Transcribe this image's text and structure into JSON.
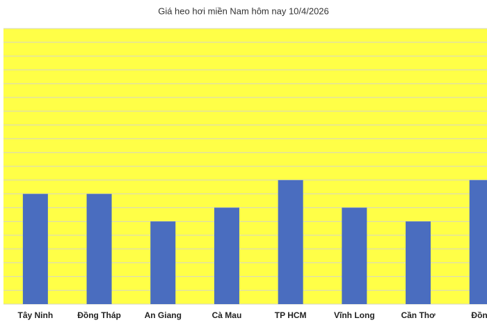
{
  "chart_data": {
    "type": "bar",
    "title": "Giá heo hơi miền Nam hôm nay 10/4/2026",
    "categories": [
      "Tây Ninh",
      "Đồng Tháp",
      "An Giang",
      "Cà Mau",
      "TP HCM",
      "Vĩnh Long",
      "Cần Thơ",
      "Đồng"
    ],
    "values": [
      8,
      8,
      6,
      7,
      9,
      7,
      6,
      9
    ],
    "color": "#4a6dbf",
    "plot_background": "#ffff47",
    "ylim": [
      0,
      20
    ],
    "yticks": [
      0,
      1,
      2,
      3,
      4,
      5,
      6,
      7,
      8,
      9,
      10,
      11,
      12,
      13,
      14,
      15,
      16,
      17,
      18,
      19,
      20
    ],
    "grid": true
  }
}
